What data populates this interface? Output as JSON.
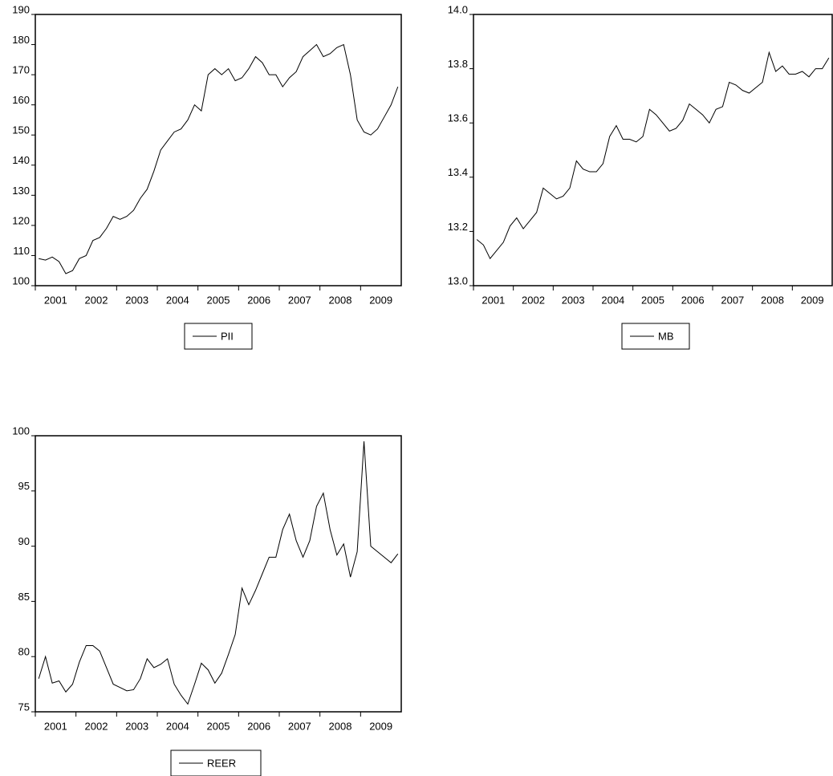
{
  "chart_data": [
    {
      "type": "line",
      "categories": [
        "2001",
        null,
        null,
        null,
        null,
        null,
        "2002",
        null,
        null,
        null,
        null,
        null,
        "2003",
        null,
        null,
        null,
        null,
        null,
        "2004",
        null,
        null,
        null,
        null,
        null,
        "2005",
        null,
        null,
        null,
        null,
        null,
        "2006",
        null,
        null,
        null,
        null,
        null,
        "2007",
        null,
        null,
        null,
        null,
        null,
        "2008",
        null,
        null,
        null,
        null,
        null,
        "2009",
        null,
        null,
        null,
        null,
        null
      ],
      "series": [
        {
          "name": "PII",
          "color": "#000000",
          "values": [
            109,
            108.5,
            109.5,
            108,
            104,
            105,
            109,
            110,
            115,
            116,
            119,
            123,
            122,
            123,
            125,
            129,
            132,
            138,
            145,
            148,
            151,
            152,
            155,
            160,
            158,
            170,
            172,
            170,
            172,
            168,
            169,
            172,
            176,
            174,
            170,
            170,
            166,
            169,
            171,
            176,
            178,
            180,
            176,
            177,
            179,
            180,
            170,
            155,
            151,
            150,
            152,
            156,
            160,
            166
          ]
        }
      ],
      "ylim": [
        100,
        190
      ],
      "yticks": [
        100,
        110,
        120,
        130,
        140,
        150,
        160,
        170,
        180,
        190
      ],
      "legend": "bottom"
    },
    {
      "type": "line",
      "categories": [
        "2001",
        null,
        null,
        null,
        null,
        null,
        "2002",
        null,
        null,
        null,
        null,
        null,
        "2003",
        null,
        null,
        null,
        null,
        null,
        "2004",
        null,
        null,
        null,
        null,
        null,
        "2005",
        null,
        null,
        null,
        null,
        null,
        "2006",
        null,
        null,
        null,
        null,
        null,
        "2007",
        null,
        null,
        null,
        null,
        null,
        "2008",
        null,
        null,
        null,
        null,
        null,
        "2009",
        null,
        null,
        null,
        null,
        null
      ],
      "series": [
        {
          "name": "MB",
          "color": "#000000",
          "values": [
            13.17,
            13.15,
            13.1,
            13.13,
            13.16,
            13.22,
            13.25,
            13.21,
            13.24,
            13.27,
            13.36,
            13.34,
            13.32,
            13.33,
            13.36,
            13.46,
            13.43,
            13.42,
            13.42,
            13.45,
            13.55,
            13.59,
            13.54,
            13.54,
            13.53,
            13.55,
            13.65,
            13.63,
            13.6,
            13.57,
            13.58,
            13.61,
            13.67,
            13.65,
            13.63,
            13.6,
            13.65,
            13.66,
            13.75,
            13.74,
            13.72,
            13.71,
            13.73,
            13.75,
            13.86,
            13.79,
            13.81,
            13.78,
            13.78,
            13.79,
            13.77,
            13.8,
            13.8,
            13.84
          ]
        }
      ],
      "ylim": [
        13.0,
        14.0
      ],
      "yticks": [
        {
          "value": 13.0,
          "label": "13.0"
        },
        13.2,
        13.4,
        13.6,
        13.8,
        {
          "value": 14.0,
          "label": "14.0"
        }
      ],
      "legend": "bottom"
    },
    {
      "type": "line",
      "categories": [
        "2001",
        null,
        null,
        null,
        null,
        null,
        "2002",
        null,
        null,
        null,
        null,
        null,
        "2003",
        null,
        null,
        null,
        null,
        null,
        "2004",
        null,
        null,
        null,
        null,
        null,
        "2005",
        null,
        null,
        null,
        null,
        null,
        "2006",
        null,
        null,
        null,
        null,
        null,
        "2007",
        null,
        null,
        null,
        null,
        null,
        "2008",
        null,
        null,
        null,
        null,
        null,
        "2009",
        null,
        null,
        null,
        null,
        null
      ],
      "series": [
        {
          "name": "REER",
          "color": "#000000",
          "values": [
            78,
            80,
            77.6,
            77.8,
            76.8,
            77.5,
            79.5,
            81,
            81,
            80.5,
            79,
            77.5,
            77.2,
            76.9,
            77,
            78,
            79.8,
            79,
            79.3,
            79.8,
            77.5,
            76.5,
            75.7,
            77.5,
            79.4,
            78.8,
            77.6,
            78.5,
            80.2,
            82,
            86.2,
            84.7,
            86,
            87.5,
            89,
            89,
            91.5,
            92.9,
            90.5,
            89,
            90.5,
            93.6,
            94.8,
            91.5,
            89.2,
            90.2,
            87.2,
            89.5,
            99.5,
            90,
            89.5,
            89,
            88.5,
            89.3
          ]
        }
      ],
      "ylim": [
        75,
        100
      ],
      "yticks": [
        75,
        80,
        85,
        90,
        95,
        100
      ],
      "legend": "bottom"
    }
  ]
}
